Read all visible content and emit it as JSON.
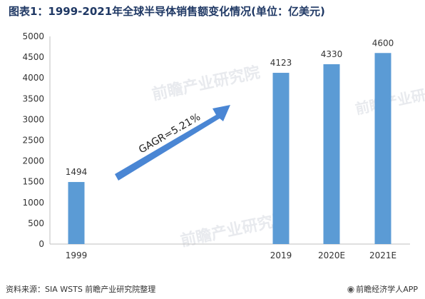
{
  "title": "图表1：1999-2021年全球半导体销售额变化情况(单位：亿美元)",
  "footer": {
    "source": "资料来源：SIA  WSTS  前瞻产业研究院整理",
    "app": "前瞻经济学人APP",
    "app_icon": "qianzhan-logo-icon"
  },
  "watermark_text": "前瞻产业研究院",
  "chart_data": {
    "type": "bar",
    "title": "图表1：1999-2021年全球半导体销售额变化情况(单位：亿美元)",
    "categories": [
      "1999",
      "2019",
      "2020E",
      "2021E"
    ],
    "values": [
      1494,
      4123,
      4330,
      4600
    ],
    "ylim": [
      0,
      5000
    ],
    "ytick_step": 500,
    "xlabel": "",
    "ylabel": "",
    "grid": false,
    "legend": "none",
    "annotation": "GAGR=5.21%",
    "colors": {
      "bar": "#5b9bd5",
      "arrow": "#4a86d4",
      "axis": "#bfbfbf",
      "text": "#333333"
    }
  }
}
